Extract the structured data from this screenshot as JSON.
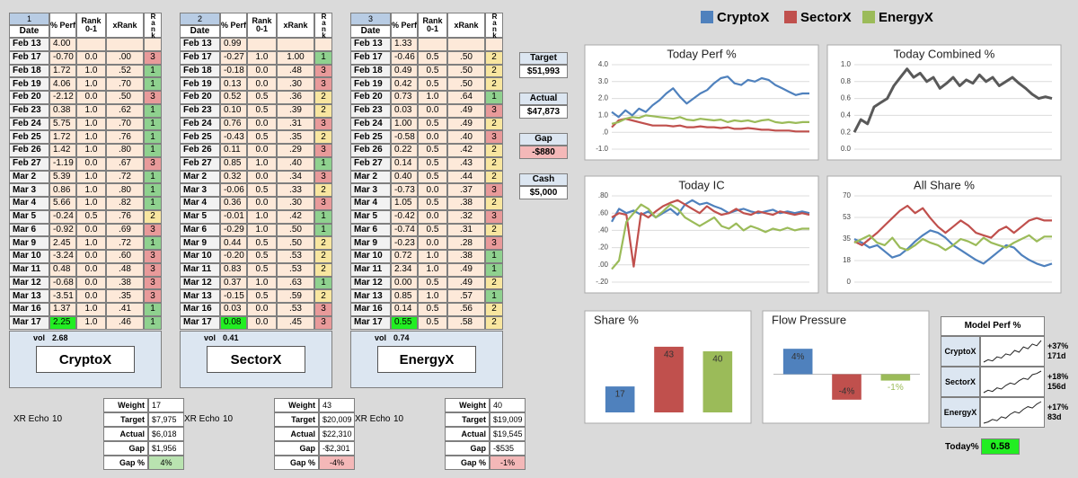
{
  "header": {
    "cols": [
      "% Perf",
      "Rank 0-1",
      "xRank",
      "Rank"
    ],
    "date": "Date"
  },
  "panels": [
    {
      "index": "1",
      "name": "CryptoX",
      "vol_label": "vol",
      "vol": "2.68",
      "echo": "XR Echo",
      "echo_value": "10",
      "rows": [
        [
          "Feb 13",
          "4.00"
        ],
        [
          "Feb 17",
          "-0.70",
          "0.0",
          ".00",
          "3"
        ],
        [
          "Feb 18",
          "1.72",
          "1.0",
          ".52",
          "1"
        ],
        [
          "Feb 19",
          "4.06",
          "1.0",
          ".70",
          "1"
        ],
        [
          "Feb 20",
          "-2.12",
          "0.0",
          ".50",
          "3"
        ],
        [
          "Feb 23",
          "0.38",
          "1.0",
          ".62",
          "1"
        ],
        [
          "Feb 24",
          "5.75",
          "1.0",
          ".70",
          "1"
        ],
        [
          "Feb 25",
          "1.72",
          "1.0",
          ".76",
          "1"
        ],
        [
          "Feb 26",
          "1.42",
          "1.0",
          ".80",
          "1"
        ],
        [
          "Feb 27",
          "-1.19",
          "0.0",
          ".67",
          "3"
        ],
        [
          "Mar 2",
          "5.39",
          "1.0",
          ".72",
          "1"
        ],
        [
          "Mar 3",
          "0.86",
          "1.0",
          ".80",
          "1"
        ],
        [
          "Mar 4",
          "5.66",
          "1.0",
          ".82",
          "1"
        ],
        [
          "Mar 5",
          "-0.24",
          "0.5",
          ".76",
          "2"
        ],
        [
          "Mar 6",
          "-0.92",
          "0.0",
          ".69",
          "3"
        ],
        [
          "Mar 9",
          "2.45",
          "1.0",
          ".72",
          "1"
        ],
        [
          "Mar 10",
          "-3.24",
          "0.0",
          ".60",
          "3"
        ],
        [
          "Mar 11",
          "0.48",
          "0.0",
          ".48",
          "3"
        ],
        [
          "Mar 12",
          "-0.68",
          "0.0",
          ".38",
          "3"
        ],
        [
          "Mar 13",
          "-3.51",
          "0.0",
          ".35",
          "3"
        ],
        [
          "Mar 16",
          "1.37",
          "1.0",
          ".41",
          "1"
        ],
        [
          "Mar 17",
          "2.25",
          "1.0",
          ".46",
          "1"
        ]
      ],
      "summary": [
        "17",
        "$7,975",
        "$6,018",
        "$1,956",
        "4%"
      ]
    },
    {
      "index": "2",
      "name": "SectorX",
      "vol_label": "vol",
      "vol": "0.41",
      "echo": "XR Echo",
      "echo_value": "10",
      "rows": [
        [
          "Feb 13",
          "0.99"
        ],
        [
          "Feb 17",
          "-0.27",
          "1.0",
          "1.00",
          "1"
        ],
        [
          "Feb 18",
          "-0.18",
          "0.0",
          ".48",
          "3"
        ],
        [
          "Feb 19",
          "0.13",
          "0.0",
          ".30",
          "3"
        ],
        [
          "Feb 20",
          "0.52",
          "0.5",
          ".36",
          "2"
        ],
        [
          "Feb 23",
          "0.10",
          "0.5",
          ".39",
          "2"
        ],
        [
          "Feb 24",
          "0.76",
          "0.0",
          ".31",
          "3"
        ],
        [
          "Feb 25",
          "-0.43",
          "0.5",
          ".35",
          "2"
        ],
        [
          "Feb 26",
          "0.11",
          "0.0",
          ".29",
          "3"
        ],
        [
          "Feb 27",
          "0.85",
          "1.0",
          ".40",
          "1"
        ],
        [
          "Mar 2",
          "0.32",
          "0.0",
          ".34",
          "3"
        ],
        [
          "Mar 3",
          "-0.06",
          "0.5",
          ".33",
          "2"
        ],
        [
          "Mar 4",
          "0.36",
          "0.0",
          ".30",
          "3"
        ],
        [
          "Mar 5",
          "-0.01",
          "1.0",
          ".42",
          "1"
        ],
        [
          "Mar 6",
          "-0.29",
          "1.0",
          ".50",
          "1"
        ],
        [
          "Mar 9",
          "0.44",
          "0.5",
          ".50",
          "2"
        ],
        [
          "Mar 10",
          "-0.20",
          "0.5",
          ".53",
          "2"
        ],
        [
          "Mar 11",
          "0.83",
          "0.5",
          ".53",
          "2"
        ],
        [
          "Mar 12",
          "0.37",
          "1.0",
          ".63",
          "1"
        ],
        [
          "Mar 13",
          "-0.15",
          "0.5",
          ".59",
          "2"
        ],
        [
          "Mar 16",
          "0.03",
          "0.0",
          ".53",
          "3"
        ],
        [
          "Mar 17",
          "0.08",
          "0.0",
          ".45",
          "3"
        ]
      ],
      "summary": [
        "43",
        "$20,009",
        "$22,310",
        "-$2,301",
        "-4%"
      ]
    },
    {
      "index": "3",
      "name": "EnergyX",
      "vol_label": "vol",
      "vol": "0.74",
      "echo": "XR Echo",
      "echo_value": "10",
      "rows": [
        [
          "Feb 13",
          "1.33"
        ],
        [
          "Feb 17",
          "-0.46",
          "0.5",
          ".50",
          "2"
        ],
        [
          "Feb 18",
          "0.49",
          "0.5",
          ".50",
          "2"
        ],
        [
          "Feb 19",
          "0.42",
          "0.5",
          ".50",
          "2"
        ],
        [
          "Feb 20",
          "0.73",
          "1.0",
          ".64",
          "1"
        ],
        [
          "Feb 23",
          "0.03",
          "0.0",
          ".49",
          "3"
        ],
        [
          "Feb 24",
          "1.00",
          "0.5",
          ".49",
          "2"
        ],
        [
          "Feb 25",
          "-0.58",
          "0.0",
          ".40",
          "3"
        ],
        [
          "Feb 26",
          "0.22",
          "0.5",
          ".42",
          "2"
        ],
        [
          "Feb 27",
          "0.14",
          "0.5",
          ".43",
          "2"
        ],
        [
          "Mar 2",
          "0.40",
          "0.5",
          ".44",
          "2"
        ],
        [
          "Mar 3",
          "-0.73",
          "0.0",
          ".37",
          "3"
        ],
        [
          "Mar 4",
          "1.05",
          "0.5",
          ".38",
          "2"
        ],
        [
          "Mar 5",
          "-0.42",
          "0.0",
          ".32",
          "3"
        ],
        [
          "Mar 6",
          "-0.74",
          "0.5",
          ".31",
          "2"
        ],
        [
          "Mar 9",
          "-0.23",
          "0.0",
          ".28",
          "3"
        ],
        [
          "Mar 10",
          "0.72",
          "1.0",
          ".38",
          "1"
        ],
        [
          "Mar 11",
          "2.34",
          "1.0",
          ".49",
          "1"
        ],
        [
          "Mar 12",
          "0.00",
          "0.5",
          ".49",
          "2"
        ],
        [
          "Mar 13",
          "0.85",
          "1.0",
          ".57",
          "1"
        ],
        [
          "Mar 16",
          "0.14",
          "0.5",
          ".56",
          "2"
        ],
        [
          "Mar 17",
          "0.55",
          "0.5",
          ".58",
          "2"
        ]
      ],
      "summary": [
        "40",
        "$19,009",
        "$19,545",
        "-$535",
        "-1%"
      ]
    }
  ],
  "summary_labels": [
    "Weight",
    "Target",
    "Actual",
    "Gap",
    "Gap %"
  ],
  "totals": [
    {
      "label": "Target",
      "value": "$51,993"
    },
    {
      "label": "Actual",
      "value": "$47,873"
    },
    {
      "label": "Gap",
      "value": "-$880"
    },
    {
      "label": "Cash",
      "value": "$5,000"
    }
  ],
  "legend": [
    {
      "name": "CryptoX",
      "color": "#4f81bd"
    },
    {
      "name": "SectorX",
      "color": "#c0504d"
    },
    {
      "name": "EnergyX",
      "color": "#9bbb59"
    }
  ],
  "chart_data": [
    {
      "type": "line",
      "title": "Today Perf %",
      "ylim": [
        -1,
        4
      ],
      "grid": true,
      "yticks": [
        {
          "value": 4,
          "label": "4.0"
        },
        {
          "value": 3,
          "label": "3.0"
        },
        {
          "value": 2,
          "label": "2.0"
        },
        {
          "value": 1,
          "label": "1.0"
        },
        {
          "value": 0,
          "label": ".0"
        },
        {
          "value": -1,
          "label": "-1.0"
        }
      ],
      "series": [
        {
          "color": "#4f81bd",
          "values": [
            1.2,
            0.9,
            1.3,
            1.0,
            1.4,
            1.2,
            1.6,
            1.9,
            2.3,
            2.6,
            2.1,
            1.7,
            2.0,
            2.3,
            2.5,
            2.9,
            3.2,
            3.3,
            2.9,
            2.8,
            3.1,
            3.0,
            3.2,
            3.1,
            2.8,
            2.6,
            2.4,
            2.2,
            2.3,
            2.3
          ]
        },
        {
          "color": "#c0504d",
          "values": [
            0.3,
            0.7,
            0.8,
            0.7,
            0.6,
            0.5,
            0.4,
            0.4,
            0.4,
            0.35,
            0.4,
            0.3,
            0.3,
            0.35,
            0.3,
            0.3,
            0.25,
            0.3,
            0.2,
            0.2,
            0.25,
            0.2,
            0.15,
            0.15,
            0.1,
            0.1,
            0.1,
            0.05,
            0.05,
            0.05
          ]
        },
        {
          "color": "#9bbb59",
          "values": [
            0.5,
            0.6,
            0.8,
            0.9,
            0.85,
            1.0,
            0.95,
            0.9,
            0.85,
            0.8,
            0.9,
            0.75,
            0.7,
            0.8,
            0.75,
            0.7,
            0.75,
            0.6,
            0.7,
            0.65,
            0.7,
            0.6,
            0.7,
            0.75,
            0.6,
            0.55,
            0.6,
            0.55,
            0.6,
            0.6
          ]
        }
      ]
    },
    {
      "type": "line",
      "title": "Today Combined %",
      "ylim": [
        0,
        1
      ],
      "grid": true,
      "yticks": [
        {
          "value": 1,
          "label": "1.0"
        },
        {
          "value": 0.8,
          "label": "0.8"
        },
        {
          "value": 0.6,
          "label": "0.6"
        },
        {
          "value": 0.4,
          "label": "0.4"
        },
        {
          "value": 0.2,
          "label": "0.2"
        },
        {
          "value": 0,
          "label": "0.0"
        }
      ],
      "series": [
        {
          "color": "#595959",
          "values": [
            0.2,
            0.35,
            0.3,
            0.5,
            0.55,
            0.6,
            0.75,
            0.85,
            0.95,
            0.85,
            0.9,
            0.8,
            0.85,
            0.72,
            0.78,
            0.85,
            0.75,
            0.82,
            0.78,
            0.88,
            0.8,
            0.85,
            0.75,
            0.8,
            0.85,
            0.78,
            0.72,
            0.65,
            0.6,
            0.62,
            0.6
          ]
        }
      ]
    },
    {
      "type": "line",
      "title": "Today IC",
      "ylim": [
        -0.2,
        0.8
      ],
      "grid": true,
      "yticks": [
        {
          "value": 0.8,
          "label": ".80"
        },
        {
          "value": 0.6,
          "label": ".60"
        },
        {
          "value": 0.4,
          "label": ".40"
        },
        {
          "value": 0.2,
          "label": ".20"
        },
        {
          "value": 0,
          "label": ".00"
        },
        {
          "value": -0.2,
          "label": "-.20"
        }
      ],
      "series": [
        {
          "color": "#4f81bd",
          "values": [
            0.5,
            0.65,
            0.6,
            0.63,
            0.58,
            0.62,
            0.55,
            0.6,
            0.65,
            0.58,
            0.7,
            0.75,
            0.7,
            0.72,
            0.68,
            0.65,
            0.6,
            0.63,
            0.65,
            0.62,
            0.6,
            0.62,
            0.64,
            0.6,
            0.62,
            0.6,
            0.62,
            0.6
          ]
        },
        {
          "color": "#c0504d",
          "values": [
            0.55,
            0.6,
            0.58,
            -0.02,
            0.6,
            0.55,
            0.62,
            0.68,
            0.72,
            0.75,
            0.7,
            0.65,
            0.6,
            0.68,
            0.62,
            0.58,
            0.6,
            0.65,
            0.6,
            0.58,
            0.62,
            0.6,
            0.58,
            0.62,
            0.6,
            0.58,
            0.6,
            0.58
          ]
        },
        {
          "color": "#9bbb59",
          "values": [
            -0.05,
            0.05,
            0.5,
            0.6,
            0.7,
            0.65,
            0.55,
            0.62,
            0.7,
            0.65,
            0.55,
            0.5,
            0.45,
            0.5,
            0.55,
            0.45,
            0.42,
            0.48,
            0.4,
            0.45,
            0.42,
            0.38,
            0.42,
            0.4,
            0.43,
            0.4,
            0.42,
            0.42
          ]
        }
      ]
    },
    {
      "type": "line",
      "title": "All Share %",
      "ylim": [
        0,
        70
      ],
      "grid": true,
      "yticks": [
        70,
        {
          "value": 52.5,
          "label": "53"
        },
        35,
        {
          "value": 17.5,
          "label": "18"
        },
        0
      ],
      "series": [
        {
          "color": "#4f81bd",
          "values": [
            35,
            32,
            28,
            30,
            25,
            20,
            22,
            27,
            33,
            38,
            42,
            40,
            36,
            30,
            26,
            22,
            18,
            15,
            20,
            25,
            30,
            28,
            22,
            18,
            15,
            13,
            15
          ]
        },
        {
          "color": "#c0504d",
          "values": [
            33,
            30,
            35,
            40,
            46,
            52,
            58,
            62,
            56,
            60,
            52,
            45,
            40,
            45,
            50,
            46,
            40,
            38,
            36,
            42,
            45,
            40,
            45,
            50,
            52,
            50,
            50
          ]
        },
        {
          "color": "#9bbb59",
          "values": [
            32,
            35,
            38,
            32,
            30,
            36,
            28,
            26,
            30,
            35,
            32,
            30,
            26,
            30,
            35,
            33,
            30,
            36,
            32,
            30,
            28,
            32,
            35,
            38,
            33,
            37,
            37
          ]
        }
      ]
    },
    {
      "type": "bar",
      "title": "Share %",
      "ylim": [
        0,
        50
      ],
      "values": [
        17,
        43,
        40
      ],
      "colors": [
        "#4f81bd",
        "#c0504d",
        "#9bbb59"
      ]
    },
    {
      "type": "bar",
      "title": "Flow Pressure",
      "ylim": [
        -6,
        6
      ],
      "values": [
        4,
        -4,
        -1
      ],
      "value_labels": [
        "4%",
        "-4%",
        "-1%"
      ],
      "colors": [
        "#4f81bd",
        "#c0504d",
        "#9bbb59"
      ]
    }
  ],
  "model_perf": {
    "title": "Model Perf %",
    "rows": [
      {
        "name": "CryptoX",
        "change": "+37%",
        "days": "171d",
        "spark": [
          0,
          4,
          2,
          9,
          7,
          14,
          12,
          20,
          17,
          26,
          23,
          31,
          28,
          37
        ]
      },
      {
        "name": "SectorX",
        "change": "+18%",
        "days": "156d",
        "spark": [
          0,
          2,
          1,
          4,
          3,
          6,
          8,
          7,
          10,
          12,
          11,
          15,
          16,
          18
        ]
      },
      {
        "name": "EnergyX",
        "change": "+17%",
        "days": "83d",
        "spark": [
          0,
          1,
          3,
          2,
          5,
          4,
          7,
          9,
          8,
          11,
          13,
          12,
          15,
          17
        ]
      }
    ]
  },
  "today": {
    "label": "Today%",
    "value": "0.58"
  }
}
